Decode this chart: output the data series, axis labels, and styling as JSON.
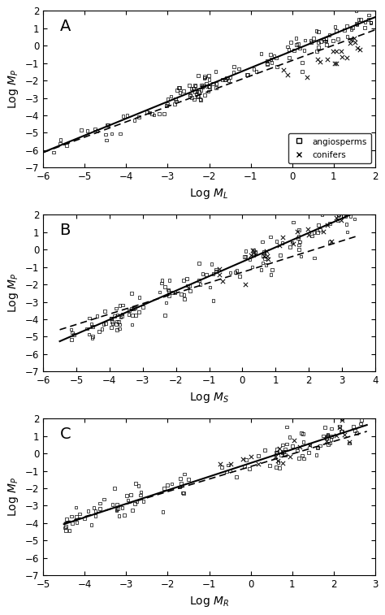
{
  "panel_A": {
    "label": "A",
    "xlabel": "Log $M_L$",
    "ylabel": "Log $M_P$",
    "xlim": [
      -6,
      2
    ],
    "ylim": [
      -7,
      2
    ],
    "xticks": [
      -6,
      -5,
      -4,
      -3,
      -2,
      -1,
      0,
      1,
      2
    ],
    "yticks": [
      -7,
      -6,
      -5,
      -4,
      -3,
      -2,
      -1,
      0,
      1,
      2
    ],
    "solid_line": {
      "x0": -6,
      "x1": 2,
      "slope": 0.97,
      "intercept": -0.3
    },
    "dashed_line": {
      "x0": -6,
      "x1": 2,
      "slope": 0.88,
      "intercept": -0.85
    }
  },
  "panel_B": {
    "label": "B",
    "xlabel": "Log $M_S$",
    "ylabel": "Log $M_P$",
    "xlim": [
      -6,
      4
    ],
    "ylim": [
      -7,
      2
    ],
    "xticks": [
      -6,
      -5,
      -4,
      -3,
      -2,
      -1,
      0,
      1,
      2,
      3,
      4
    ],
    "yticks": [
      -7,
      -6,
      -5,
      -4,
      -3,
      -2,
      -1,
      0,
      1,
      2
    ],
    "solid_line": {
      "x0": -5.5,
      "x1": 3.5,
      "slope": 0.83,
      "intercept": -0.7
    },
    "dashed_line": {
      "x0": -5.5,
      "x1": 3.5,
      "slope": 0.6,
      "intercept": -1.3
    }
  },
  "panel_C": {
    "label": "C",
    "xlabel": "Log $M_R$",
    "ylabel": "Log $M_P$",
    "xlim": [
      -5,
      3
    ],
    "ylim": [
      -7,
      2
    ],
    "xticks": [
      -5,
      -4,
      -3,
      -2,
      -1,
      0,
      1,
      2,
      3
    ],
    "yticks": [
      -7,
      -6,
      -5,
      -4,
      -3,
      -2,
      -1,
      0,
      1,
      2
    ],
    "solid_line": {
      "x0": -4.5,
      "x1": 2.8,
      "slope": 0.78,
      "intercept": -0.55
    },
    "dashed_line": {
      "x0": -4.5,
      "x1": 2.8,
      "slope": 0.72,
      "intercept": -0.75
    }
  },
  "legend": {
    "angio_label": "angiosperms",
    "conifer_label": "conifers"
  },
  "figure_bg": "#ffffff",
  "axes_bg": "#ffffff"
}
